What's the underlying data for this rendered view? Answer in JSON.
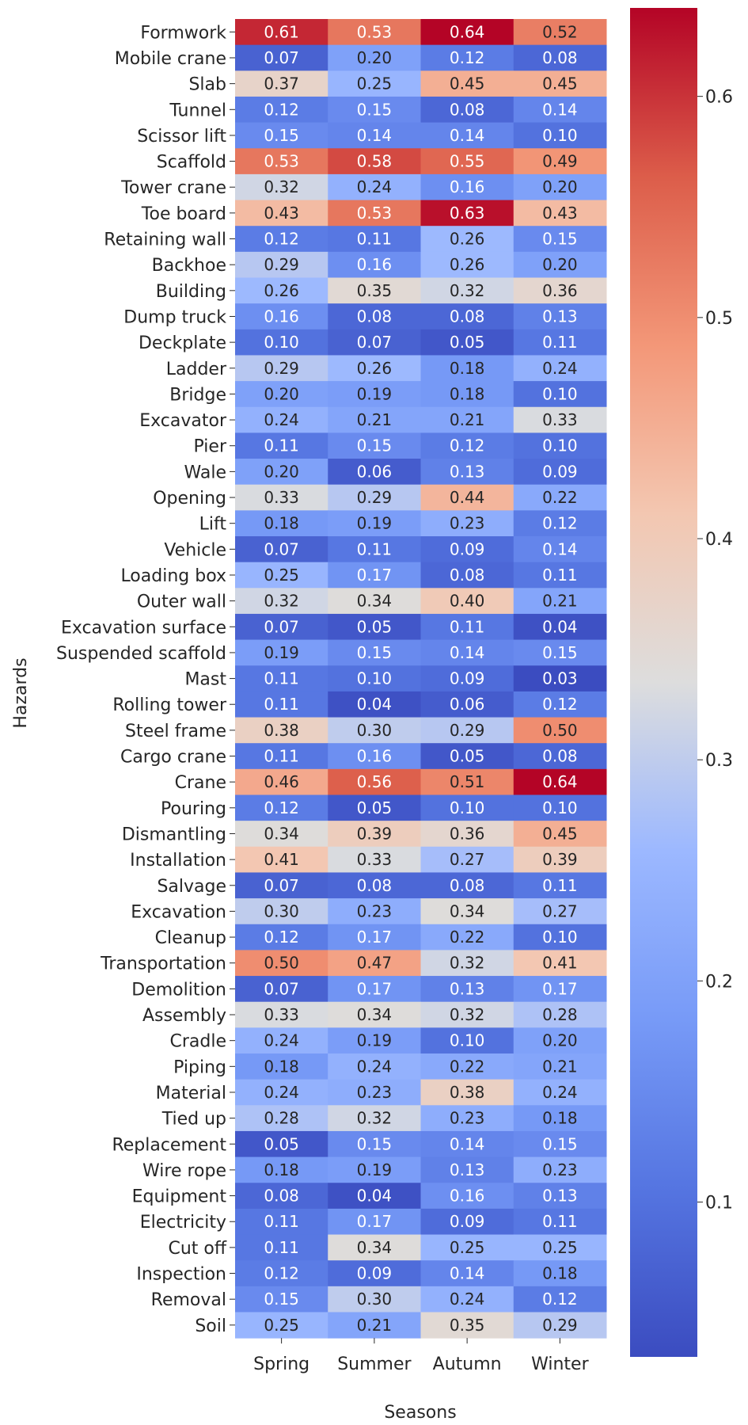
{
  "chart_data": {
    "type": "heatmap",
    "title": "",
    "xlabel": "Seasons",
    "ylabel": "Hazards",
    "x_categories": [
      "Spring",
      "Summer",
      "Autumn",
      "Winter"
    ],
    "y_categories": [
      "Formwork",
      "Mobile crane",
      "Slab",
      "Tunnel",
      "Scissor lift",
      "Scaffold",
      "Tower crane",
      "Toe board",
      "Retaining wall",
      "Backhoe",
      "Building",
      "Dump truck",
      "Deckplate",
      "Ladder",
      "Bridge",
      "Excavator",
      "Pier",
      "Wale",
      "Opening",
      "Lift",
      "Vehicle",
      "Loading box",
      "Outer wall",
      "Excavation surface",
      "Suspended scaffold",
      "Mast",
      "Rolling tower",
      "Steel frame",
      "Cargo crane",
      "Crane",
      "Pouring",
      "Dismantling",
      "Installation",
      "Salvage",
      "Excavation",
      "Cleanup",
      "Transportation",
      "Demolition",
      "Assembly",
      "Cradle",
      "Piping",
      "Material",
      "Tied up",
      "Replacement",
      "Wire rope",
      "Equipment",
      "Electricity",
      "Cut off",
      "Inspection",
      "Removal",
      "Soil"
    ],
    "values": [
      [
        0.61,
        0.53,
        0.64,
        0.52
      ],
      [
        0.07,
        0.2,
        0.12,
        0.08
      ],
      [
        0.37,
        0.25,
        0.45,
        0.45
      ],
      [
        0.12,
        0.15,
        0.08,
        0.14
      ],
      [
        0.15,
        0.14,
        0.14,
        0.1
      ],
      [
        0.53,
        0.58,
        0.55,
        0.49
      ],
      [
        0.32,
        0.24,
        0.16,
        0.2
      ],
      [
        0.43,
        0.53,
        0.63,
        0.43
      ],
      [
        0.12,
        0.11,
        0.26,
        0.15
      ],
      [
        0.29,
        0.16,
        0.26,
        0.2
      ],
      [
        0.26,
        0.35,
        0.32,
        0.36
      ],
      [
        0.16,
        0.08,
        0.08,
        0.13
      ],
      [
        0.1,
        0.07,
        0.05,
        0.11
      ],
      [
        0.29,
        0.26,
        0.18,
        0.24
      ],
      [
        0.2,
        0.19,
        0.18,
        0.1
      ],
      [
        0.24,
        0.21,
        0.21,
        0.33
      ],
      [
        0.11,
        0.15,
        0.12,
        0.1
      ],
      [
        0.2,
        0.06,
        0.13,
        0.09
      ],
      [
        0.33,
        0.29,
        0.44,
        0.22
      ],
      [
        0.18,
        0.19,
        0.23,
        0.12
      ],
      [
        0.07,
        0.11,
        0.09,
        0.14
      ],
      [
        0.25,
        0.17,
        0.08,
        0.11
      ],
      [
        0.32,
        0.34,
        0.4,
        0.21
      ],
      [
        0.07,
        0.05,
        0.11,
        0.04
      ],
      [
        0.19,
        0.15,
        0.14,
        0.15
      ],
      [
        0.11,
        0.1,
        0.09,
        0.03
      ],
      [
        0.11,
        0.04,
        0.06,
        0.12
      ],
      [
        0.38,
        0.3,
        0.29,
        0.5
      ],
      [
        0.11,
        0.16,
        0.05,
        0.08
      ],
      [
        0.46,
        0.56,
        0.51,
        0.64
      ],
      [
        0.12,
        0.05,
        0.1,
        0.1
      ],
      [
        0.34,
        0.39,
        0.36,
        0.45
      ],
      [
        0.41,
        0.33,
        0.27,
        0.39
      ],
      [
        0.07,
        0.08,
        0.08,
        0.11
      ],
      [
        0.3,
        0.23,
        0.34,
        0.27
      ],
      [
        0.12,
        0.17,
        0.22,
        0.1
      ],
      [
        0.5,
        0.47,
        0.32,
        0.41
      ],
      [
        0.07,
        0.17,
        0.13,
        0.17
      ],
      [
        0.33,
        0.34,
        0.32,
        0.28
      ],
      [
        0.24,
        0.19,
        0.1,
        0.2
      ],
      [
        0.18,
        0.24,
        0.22,
        0.21
      ],
      [
        0.24,
        0.23,
        0.38,
        0.24
      ],
      [
        0.28,
        0.32,
        0.23,
        0.18
      ],
      [
        0.05,
        0.15,
        0.14,
        0.15
      ],
      [
        0.18,
        0.19,
        0.13,
        0.23
      ],
      [
        0.08,
        0.04,
        0.16,
        0.13
      ],
      [
        0.11,
        0.17,
        0.09,
        0.11
      ],
      [
        0.11,
        0.34,
        0.25,
        0.25
      ],
      [
        0.12,
        0.09,
        0.14,
        0.18
      ],
      [
        0.15,
        0.3,
        0.24,
        0.12
      ],
      [
        0.25,
        0.21,
        0.35,
        0.29
      ]
    ],
    "value_range": [
      0.03,
      0.64
    ],
    "colormap": "coolwarm",
    "colorbar_ticks": [
      0.1,
      0.2,
      0.3,
      0.4,
      0.5,
      0.6
    ],
    "colorbar_tick_labels": [
      "0.1",
      "0.2",
      "0.3",
      "0.4",
      "0.5",
      "0.6"
    ],
    "colors": {
      "low": "#3b4cc0",
      "mid": "#dddddd",
      "high": "#b40426"
    }
  }
}
